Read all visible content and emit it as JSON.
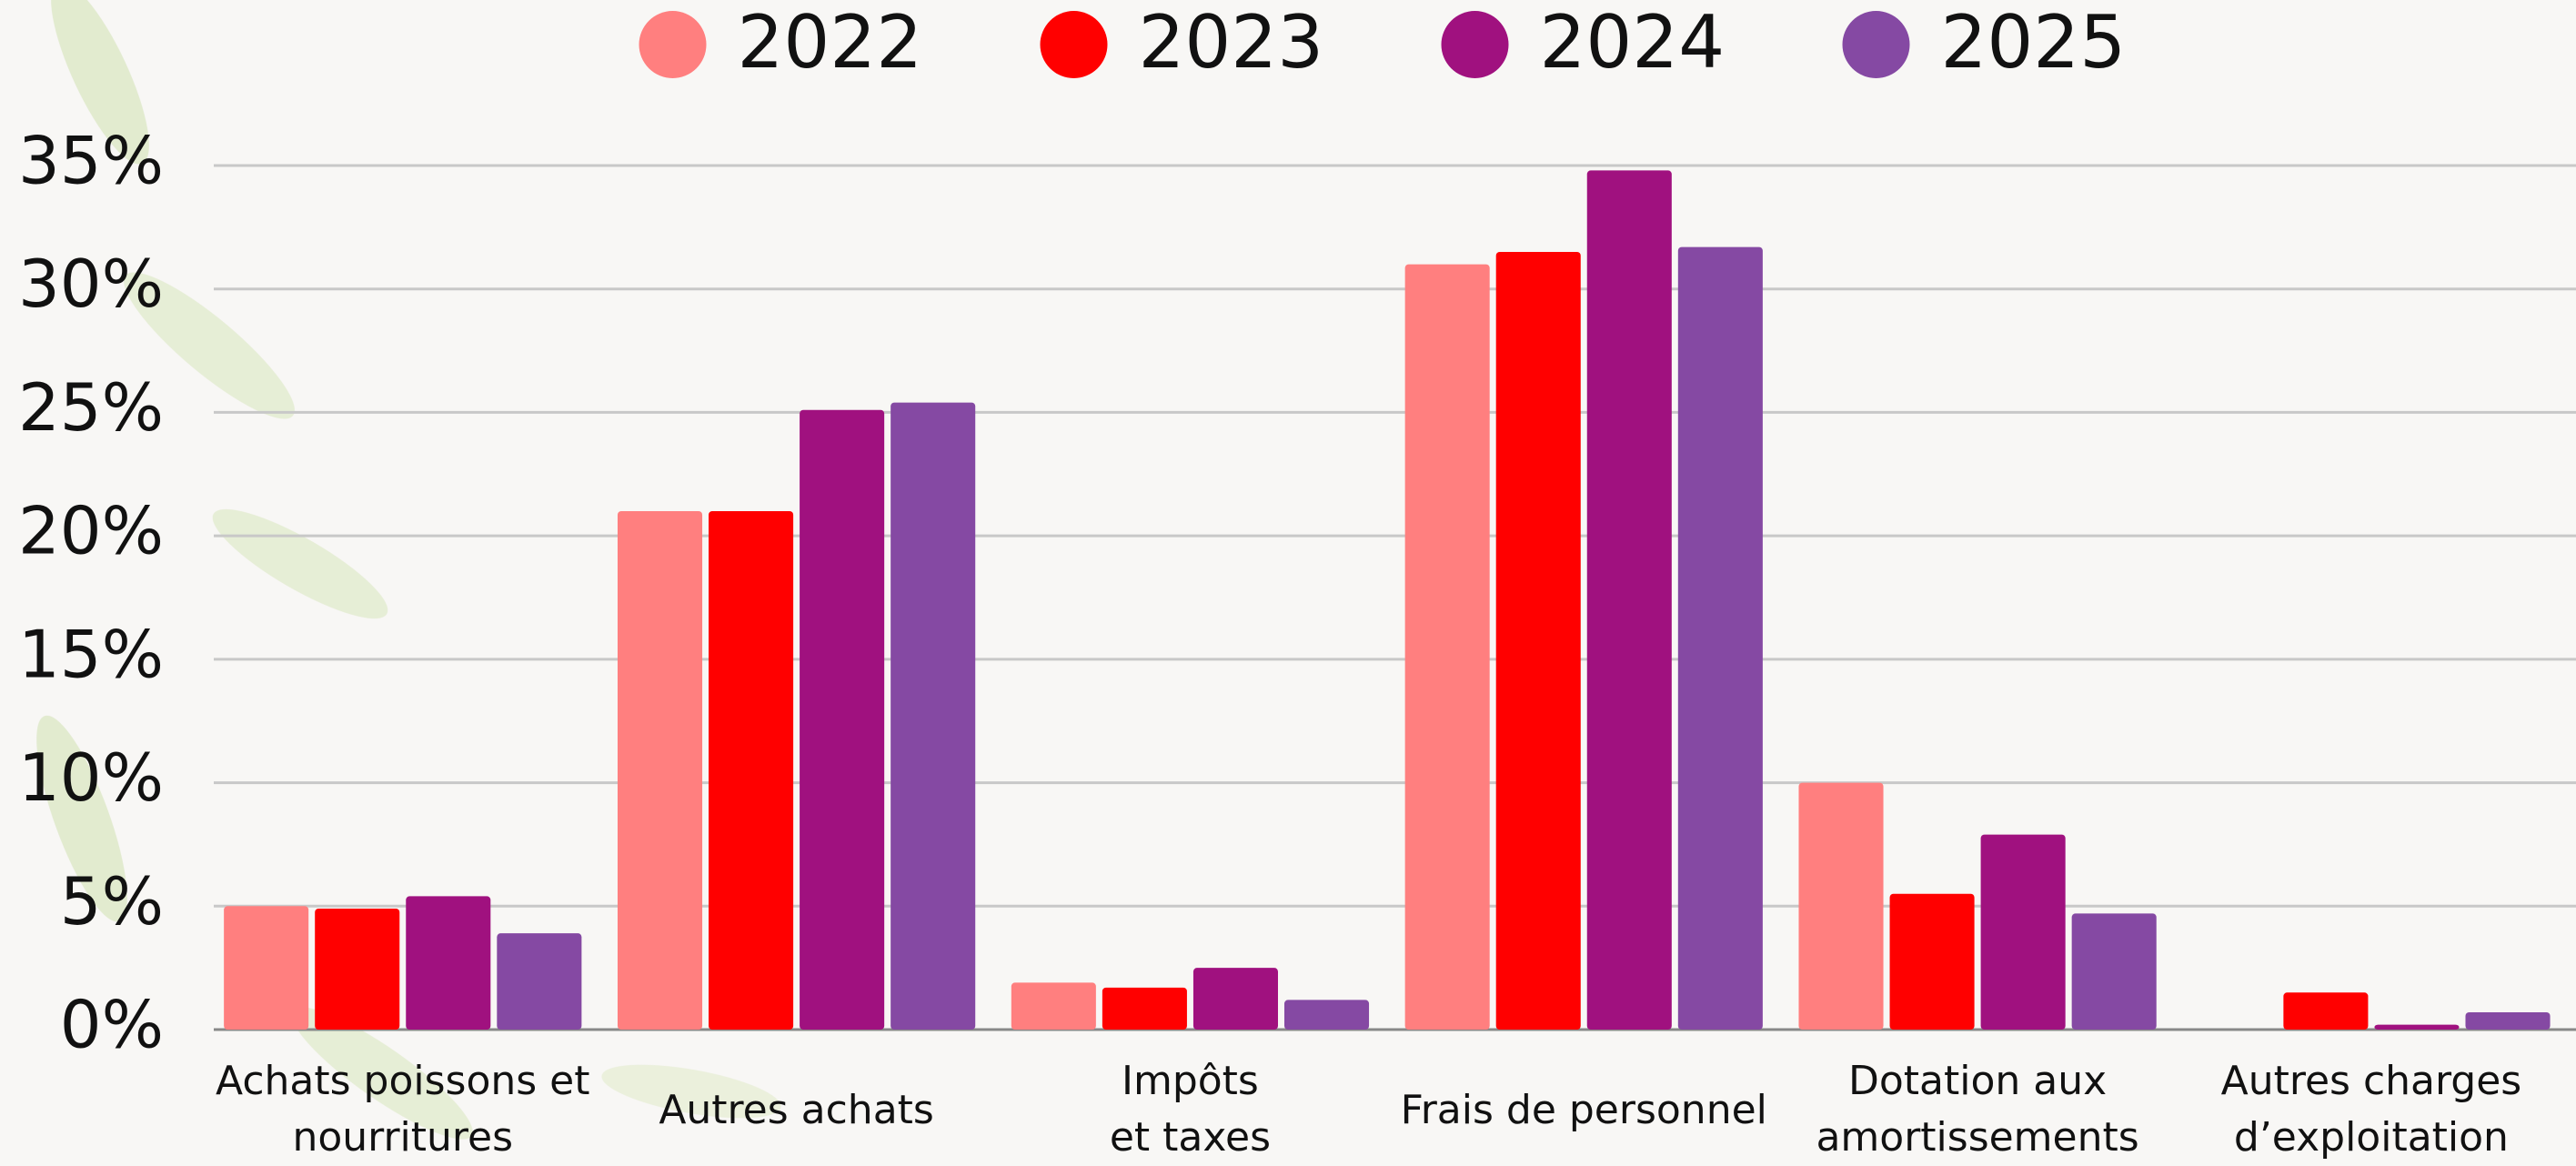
{
  "chart_data": {
    "type": "bar",
    "categories": [
      "Achats poissons et\nnourritures",
      "Autres achats",
      "Impôts\net taxes",
      "Frais de personnel",
      "Dotation aux\namortissements",
      "Autres charges\nd’exploitation"
    ],
    "series": [
      {
        "name": "2022",
        "color": "#ff7f7f",
        "values": [
          5.0,
          21.0,
          1.9,
          31.0,
          10.0,
          null
        ]
      },
      {
        "name": "2023",
        "color": "#ff0000",
        "values": [
          4.9,
          21.0,
          1.7,
          31.5,
          5.5,
          1.5
        ]
      },
      {
        "name": "2024",
        "color": "#a0117f",
        "values": [
          5.4,
          25.1,
          2.5,
          34.8,
          7.9,
          0.2
        ]
      },
      {
        "name": "2025",
        "color": "#8549a3",
        "values": [
          3.9,
          25.4,
          1.2,
          31.7,
          4.7,
          0.7
        ]
      }
    ],
    "ylim": [
      0,
      35
    ],
    "yticks": [
      {
        "value": 0,
        "label": "0%"
      },
      {
        "value": 5,
        "label": "5%"
      },
      {
        "value": 10,
        "label": "10%"
      },
      {
        "value": 15,
        "label": "15%"
      },
      {
        "value": 20,
        "label": "20%"
      },
      {
        "value": 25,
        "label": "25%"
      },
      {
        "value": 30,
        "label": "30%"
      },
      {
        "value": 35,
        "label": "35%"
      }
    ],
    "grid": true,
    "legend": "top"
  }
}
